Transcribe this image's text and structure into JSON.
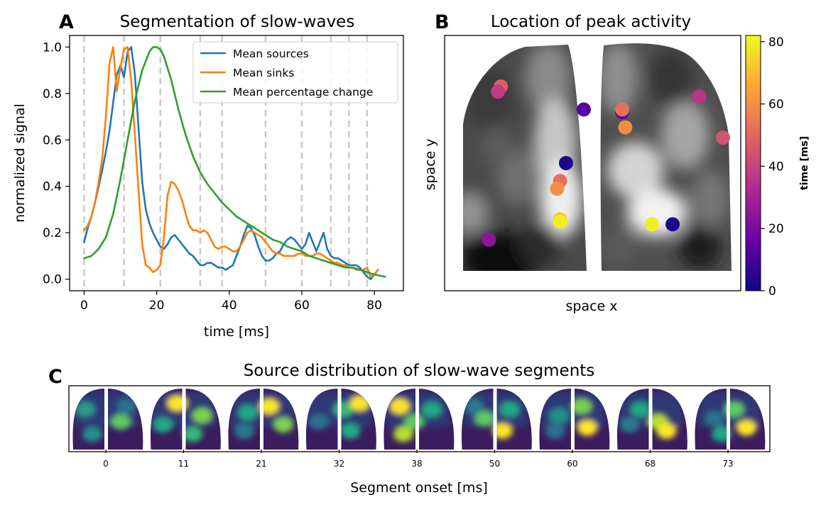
{
  "chart_data": [
    {
      "panel": "A",
      "type": "line",
      "title": "Segmentation of slow-waves",
      "xlabel": "time [ms]",
      "ylabel": "normalized signal",
      "xlim": [
        -4,
        88
      ],
      "ylim": [
        -0.05,
        1.05
      ],
      "xticks": [
        0,
        20,
        40,
        60,
        80
      ],
      "yticks": [
        0.0,
        0.2,
        0.4,
        0.6,
        0.8,
        1.0
      ],
      "xtick_labels": [
        "0",
        "20",
        "40",
        "60",
        "80"
      ],
      "ytick_labels": [
        "0.0",
        "0.2",
        "0.4",
        "0.6",
        "0.8",
        "1.0"
      ],
      "segment_boundaries": [
        0,
        11,
        21,
        32,
        38,
        50,
        60,
        68,
        73,
        78
      ],
      "legend_position": "top-right",
      "series": [
        {
          "name": "Mean sources",
          "color": "#1f77b4",
          "x": [
            0,
            1,
            2,
            3,
            4,
            5,
            6,
            7,
            8,
            9,
            10,
            11,
            12,
            13,
            14,
            15,
            16,
            17,
            18,
            19,
            20,
            21,
            22,
            23,
            24,
            25,
            26,
            27,
            28,
            29,
            30,
            31,
            32,
            33,
            34,
            35,
            36,
            37,
            38,
            39,
            40,
            41,
            42,
            43,
            44,
            45,
            46,
            47,
            48,
            49,
            50,
            51,
            52,
            53,
            54,
            55,
            56,
            57,
            58,
            59,
            60,
            61,
            62,
            63,
            64,
            65,
            66,
            67,
            68,
            69,
            70,
            71,
            72,
            73,
            74,
            75,
            76,
            77,
            78,
            79,
            80,
            81
          ],
          "y": [
            0.16,
            0.22,
            0.27,
            0.33,
            0.4,
            0.47,
            0.55,
            0.64,
            0.76,
            0.88,
            0.92,
            0.87,
            0.98,
            1.0,
            0.88,
            0.65,
            0.42,
            0.3,
            0.24,
            0.2,
            0.17,
            0.14,
            0.13,
            0.15,
            0.18,
            0.19,
            0.17,
            0.15,
            0.13,
            0.11,
            0.1,
            0.08,
            0.06,
            0.06,
            0.07,
            0.07,
            0.06,
            0.05,
            0.05,
            0.04,
            0.05,
            0.06,
            0.1,
            0.14,
            0.19,
            0.23,
            0.22,
            0.19,
            0.14,
            0.1,
            0.08,
            0.08,
            0.09,
            0.11,
            0.12,
            0.15,
            0.17,
            0.18,
            0.17,
            0.15,
            0.13,
            0.15,
            0.2,
            0.16,
            0.12,
            0.16,
            0.2,
            0.13,
            0.1,
            0.09,
            0.09,
            0.08,
            0.07,
            0.06,
            0.06,
            0.06,
            0.05,
            0.03,
            0.01,
            0.0,
            0.02,
            0.04
          ]
        },
        {
          "name": "Mean sinks",
          "color": "#ff7f0e",
          "x": [
            0,
            1,
            2,
            3,
            4,
            5,
            6,
            7,
            8,
            9,
            10,
            11,
            12,
            13,
            14,
            15,
            16,
            17,
            18,
            19,
            20,
            21,
            22,
            23,
            24,
            25,
            26,
            27,
            28,
            29,
            30,
            31,
            32,
            33,
            34,
            35,
            36,
            37,
            38,
            39,
            40,
            41,
            42,
            43,
            44,
            45,
            46,
            47,
            48,
            49,
            50,
            51,
            52,
            53,
            54,
            55,
            56,
            57,
            58,
            59,
            60,
            61,
            62,
            63,
            64,
            65,
            66,
            67,
            68,
            69,
            70,
            71,
            72,
            73,
            74,
            75,
            76,
            77,
            78,
            79,
            80,
            81
          ],
          "y": [
            0.21,
            0.23,
            0.27,
            0.33,
            0.42,
            0.52,
            0.7,
            0.93,
            1.0,
            0.81,
            0.91,
            0.99,
            1.0,
            0.85,
            0.62,
            0.38,
            0.15,
            0.06,
            0.05,
            0.03,
            0.04,
            0.06,
            0.18,
            0.36,
            0.42,
            0.41,
            0.38,
            0.34,
            0.28,
            0.23,
            0.21,
            0.21,
            0.2,
            0.21,
            0.2,
            0.17,
            0.14,
            0.13,
            0.14,
            0.14,
            0.13,
            0.12,
            0.12,
            0.14,
            0.17,
            0.2,
            0.21,
            0.2,
            0.19,
            0.18,
            0.16,
            0.14,
            0.12,
            0.11,
            0.11,
            0.1,
            0.1,
            0.1,
            0.1,
            0.11,
            0.11,
            0.1,
            0.1,
            0.1,
            0.11,
            0.11,
            0.1,
            0.09,
            0.08,
            0.07,
            0.07,
            0.06,
            0.06,
            0.05,
            0.05,
            0.04,
            0.04,
            0.04,
            0.05,
            0.01,
            0.02,
            0.04
          ]
        },
        {
          "name": "Mean percentage change",
          "color": "#2ca02c",
          "x": [
            0,
            2,
            4,
            6,
            8,
            10,
            12,
            14,
            16,
            18,
            19,
            20,
            21,
            22,
            24,
            26,
            28,
            30,
            32,
            34,
            36,
            38,
            40,
            42,
            44,
            46,
            48,
            50,
            52,
            54,
            56,
            58,
            60,
            62,
            64,
            66,
            68,
            70,
            72,
            74,
            76,
            78,
            80,
            83
          ],
          "y": [
            0.09,
            0.1,
            0.13,
            0.18,
            0.28,
            0.43,
            0.6,
            0.77,
            0.9,
            0.98,
            1.0,
            1.0,
            0.99,
            0.96,
            0.86,
            0.73,
            0.62,
            0.53,
            0.46,
            0.41,
            0.37,
            0.33,
            0.3,
            0.27,
            0.25,
            0.23,
            0.21,
            0.19,
            0.17,
            0.16,
            0.14,
            0.13,
            0.12,
            0.1,
            0.09,
            0.08,
            0.07,
            0.06,
            0.05,
            0.05,
            0.04,
            0.03,
            0.02,
            0.01
          ]
        }
      ]
    },
    {
      "panel": "B",
      "type": "scatter",
      "title": "Location of peak activity",
      "xlabel": "space x",
      "ylabel": "space y",
      "colorbar": {
        "label": "time [ms]",
        "range": [
          0,
          82
        ],
        "ticks": [
          0,
          20,
          40,
          60,
          80
        ],
        "tick_labels": [
          "0",
          "20",
          "40",
          "60",
          "80"
        ],
        "colormap": "plasma"
      },
      "points": [
        {
          "x": 0.19,
          "y": 0.8,
          "time": 47
        },
        {
          "x": 0.18,
          "y": 0.78,
          "time": 38
        },
        {
          "x": 0.47,
          "y": 0.71,
          "time": 14
        },
        {
          "x": 0.41,
          "y": 0.5,
          "time": 3
        },
        {
          "x": 0.39,
          "y": 0.43,
          "time": 52
        },
        {
          "x": 0.38,
          "y": 0.4,
          "time": 60
        },
        {
          "x": 0.39,
          "y": 0.28,
          "time": 73
        },
        {
          "x": 0.39,
          "y": 0.27,
          "time": 80
        },
        {
          "x": 0.15,
          "y": 0.2,
          "time": 25
        },
        {
          "x": 0.6,
          "y": 0.7,
          "time": 13
        },
        {
          "x": 0.6,
          "y": 0.71,
          "time": 52
        },
        {
          "x": 0.61,
          "y": 0.64,
          "time": 60
        },
        {
          "x": 0.86,
          "y": 0.76,
          "time": 30
        },
        {
          "x": 0.86,
          "y": 0.76,
          "time": 36
        },
        {
          "x": 0.94,
          "y": 0.6,
          "time": 45
        },
        {
          "x": 0.7,
          "y": 0.26,
          "time": 68
        },
        {
          "x": 0.7,
          "y": 0.26,
          "time": 80
        },
        {
          "x": 0.77,
          "y": 0.26,
          "time": 2
        }
      ]
    },
    {
      "panel": "C",
      "type": "heatmap",
      "title": "Source distribution of slow-wave segments",
      "xlabel": "Segment onset [ms]",
      "segment_onsets": [
        "0",
        "11",
        "21",
        "32",
        "38",
        "50",
        "60",
        "68",
        "73"
      ]
    }
  ],
  "panel_labels": [
    "A",
    "B",
    "C"
  ]
}
